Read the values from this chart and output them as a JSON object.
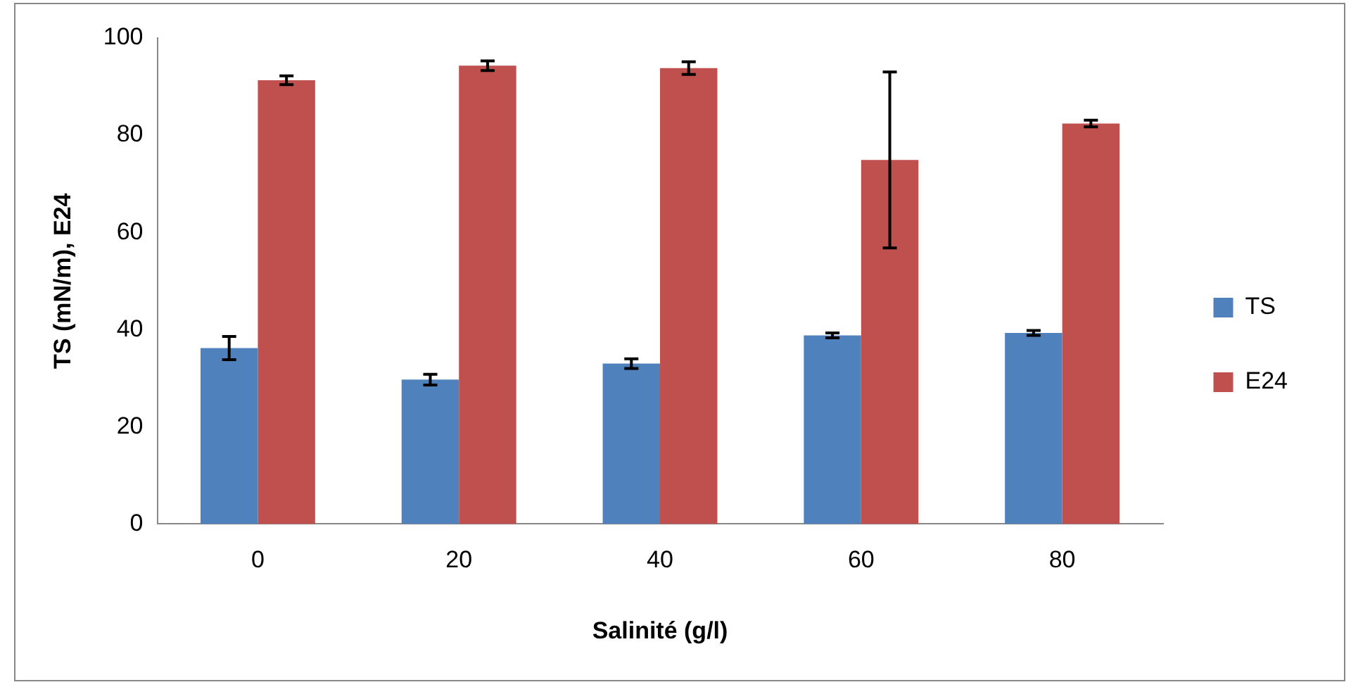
{
  "chart_data": {
    "type": "bar",
    "xlabel": "Salinité (g/l)",
    "ylabel": "TS (mN/m), E24",
    "categories": [
      "0",
      "20",
      "40",
      "60",
      "80"
    ],
    "series": [
      {
        "name": "TS",
        "color": "#4f81bd",
        "values": [
          36.2,
          29.7,
          33.0,
          38.8,
          39.3
        ],
        "errors": [
          2.4,
          1.1,
          1.0,
          0.5,
          0.5
        ]
      },
      {
        "name": "E24",
        "color": "#c0504d",
        "values": [
          91.3,
          94.3,
          93.8,
          74.9,
          82.4
        ],
        "errors": [
          0.9,
          1.0,
          1.3,
          18.1,
          0.7
        ]
      }
    ],
    "ylim": [
      0,
      100
    ],
    "yticks": [
      0,
      20,
      40,
      60,
      80,
      100
    ],
    "grid": false,
    "legend": "right"
  }
}
